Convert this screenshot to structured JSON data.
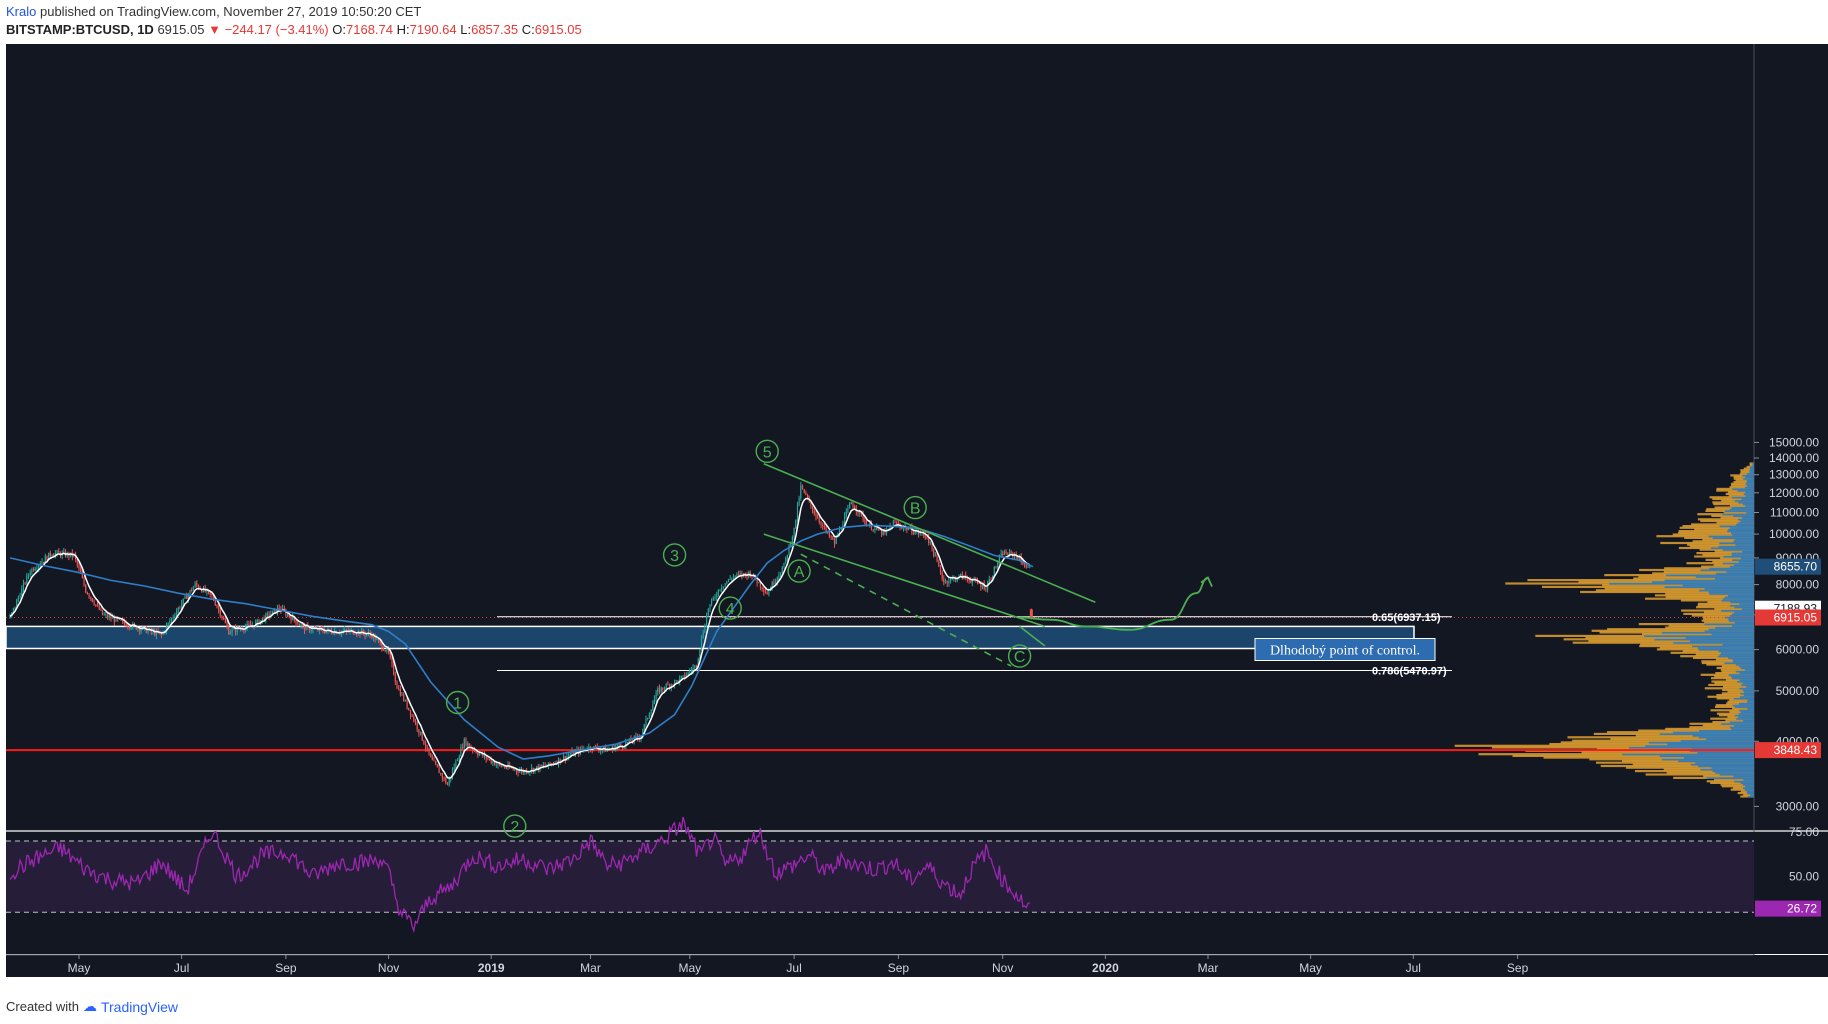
{
  "header": {
    "author": "Kralo",
    "published_text": "published on TradingView.com, November 27, 2019 10:50:20 CET",
    "symbol": "BITSTAMP:BTCUSD, 1D",
    "last": "6915.05",
    "change": "−244.17 (−3.41%)",
    "open_label": "O:",
    "open": "7168.74",
    "high_label": "H:",
    "high": "7190.64",
    "low_label": "L:",
    "low": "6857.35",
    "close_label": "C:",
    "close": "6915.05"
  },
  "footer": {
    "created_with": "Created with",
    "brand": "TradingView"
  },
  "colors": {
    "background": "#131722",
    "price_up": "#26a69a",
    "price_down": "#ef5350",
    "moving_avg": "#2f7ec7",
    "fast_ma": "#ffffff",
    "trend_lines": "#4caf50",
    "support_line": "#ff1a1a",
    "poc_zone": "#1f4e79",
    "rsi_line": "#9c27b0",
    "volume_profile_up": "#2a7abf",
    "volume_profile_down": "#e0a030"
  },
  "chart_data": {
    "type": "line",
    "title": "",
    "price_axis": {
      "ticks": [
        3000,
        4000,
        5000,
        6000,
        7000,
        8000,
        9000,
        10000,
        11000,
        12000,
        13000,
        14000,
        15000
      ],
      "tick_labels": [
        "3000.00",
        "4000.00",
        "5000.00",
        "6000.00",
        "7000.00",
        "8000.00",
        "9000.00",
        "10000.00",
        "11000.00",
        "12000.00",
        "13000.00",
        "14000.00",
        "15000.00"
      ],
      "ylim": [
        1900,
        15250
      ]
    },
    "time_axis": {
      "labels": [
        "May",
        "Jul",
        "Sep",
        "Nov",
        "2019",
        "Mar",
        "May",
        "Jul",
        "Sep",
        "Nov",
        "2020",
        "Mar",
        "May",
        "Jul",
        "Sep"
      ],
      "label_day_index": [
        41,
        102,
        164,
        225,
        286,
        345,
        404,
        466,
        528,
        590,
        651,
        712,
        773,
        834,
        896
      ]
    },
    "price_series": {
      "name": "BITSTAMP:BTCUSD",
      "x": [
        0,
        12,
        25,
        38,
        45,
        55,
        70,
        90,
        110,
        120,
        130,
        145,
        160,
        175,
        190,
        205,
        215,
        225,
        230,
        240,
        250,
        260,
        270,
        278,
        290,
        305,
        320,
        335,
        345,
        355,
        365,
        375,
        385,
        395,
        400,
        408,
        415,
        422,
        430,
        440,
        450,
        460,
        466,
        470,
        478,
        485,
        490,
        500,
        510,
        520,
        525,
        535,
        545,
        555,
        565,
        570,
        580,
        590,
        598,
        605
      ],
      "y": [
        6900,
        8500,
        9200,
        9100,
        7800,
        7000,
        6700,
        6400,
        8000,
        7600,
        6500,
        6700,
        7200,
        6600,
        6500,
        6500,
        6400,
        5900,
        5100,
        4400,
        3700,
        3300,
        4000,
        3800,
        3600,
        3500,
        3600,
        3800,
        3900,
        3850,
        3950,
        4100,
        5000,
        5200,
        5300,
        5600,
        7200,
        7900,
        8300,
        8400,
        7700,
        8700,
        10200,
        12300,
        11000,
        10100,
        9600,
        11500,
        10400,
        10000,
        10500,
        10200,
        9900,
        8100,
        8300,
        8200,
        7900,
        9200,
        9100,
        8600
      ]
    },
    "last_candle": {
      "x": 607,
      "open": 7168.74,
      "high": 7190.64,
      "low": 6857.35,
      "close": 6915.05
    },
    "moving_average": {
      "name": "",
      "x": [
        0,
        20,
        40,
        60,
        80,
        100,
        120,
        140,
        160,
        180,
        200,
        215,
        225,
        235,
        250,
        270,
        290,
        305,
        320,
        340,
        360,
        380,
        395,
        405,
        420,
        440,
        450,
        460,
        470,
        480,
        495,
        510,
        525,
        540,
        555,
        570,
        585,
        600,
        608
      ],
      "y": [
        9000,
        8700,
        8450,
        8150,
        7950,
        7700,
        7500,
        7350,
        7150,
        6950,
        6800,
        6700,
        6500,
        6150,
        5200,
        4400,
        3900,
        3700,
        3750,
        3850,
        3950,
        4150,
        4500,
        5100,
        6500,
        8000,
        8800,
        9300,
        9700,
        10000,
        10300,
        10400,
        10350,
        10250,
        9900,
        9500,
        9100,
        8900,
        8655.7
      ]
    },
    "fibonacci": [
      {
        "label": "0.65(6937.15)",
        "value": 6937.15
      },
      {
        "label": "0.786(5470.97)",
        "value": 5470.97
      }
    ],
    "support_line": {
      "value": 3848.43,
      "label": "3848.43"
    },
    "poc_zone": {
      "low": 6030,
      "high": 6650,
      "label": "Dlhodobý point of control."
    },
    "price_labels": [
      {
        "text": "8655.70",
        "value": 8655.7,
        "color": "#1f4e79"
      },
      {
        "text": "7188.93",
        "value": 7188.93,
        "color": "#ffffff"
      },
      {
        "text": "6915.05",
        "value": 6915.05,
        "color": "#e53935"
      },
      {
        "text": "3848.43",
        "value": 3848.43,
        "color": "#e53935"
      }
    ],
    "wave_labels": [
      {
        "text": "1",
        "x": 266,
        "y": 4750
      },
      {
        "text": "2",
        "x": 300,
        "y": 2750
      },
      {
        "text": "3",
        "x": 395,
        "y": 9120
      },
      {
        "text": "4",
        "x": 428,
        "y": 7210
      },
      {
        "text": "5",
        "x": 450,
        "y": 14420
      },
      {
        "text": "A",
        "x": 469,
        "y": 8490
      },
      {
        "text": "B",
        "x": 538,
        "y": 11240
      },
      {
        "text": "C",
        "x": 600,
        "y": 5830
      }
    ],
    "channel_lines": [
      {
        "x": [
          448,
          645
        ],
        "y": [
          13650,
          7400
        ],
        "dashed": false
      },
      {
        "x": [
          448,
          615
        ],
        "y": [
          10000,
          6650
        ],
        "dashed": false
      },
      {
        "x": [
          600,
          615
        ],
        "y": [
          6650,
          6100
        ],
        "dashed": false
      },
      {
        "x": [
          470,
          595
        ],
        "y": [
          9150,
          5580
        ],
        "dashed": true
      }
    ],
    "projection_curve": {
      "x": [
        600,
        618,
        640,
        665,
        690,
        705,
        712
      ],
      "y": [
        6915,
        6850,
        6650,
        6550,
        6850,
        7700,
        8250
      ]
    },
    "rsi": {
      "name": "RSI",
      "ylim": [
        0,
        100
      ],
      "upper_band": 70,
      "lower_band": 30,
      "tick_labels": [
        "75.00",
        "50.00"
      ],
      "ticks": [
        75,
        50
      ],
      "current_label": "26.72",
      "x": [
        0,
        15,
        30,
        45,
        60,
        75,
        90,
        105,
        120,
        135,
        150,
        165,
        180,
        195,
        210,
        220,
        225,
        232,
        240,
        250,
        262,
        275,
        290,
        305,
        320,
        335,
        345,
        355,
        365,
        372,
        380,
        390,
        400,
        410,
        418,
        425,
        435,
        445,
        455,
        465,
        475,
        485,
        495,
        505,
        515,
        525,
        535,
        545,
        555,
        565,
        570,
        580,
        590,
        600,
        605
      ],
      "y": [
        52,
        60,
        66,
        54,
        48,
        46,
        58,
        42,
        76,
        50,
        62,
        64,
        50,
        58,
        58,
        60,
        52,
        30,
        22,
        38,
        44,
        62,
        56,
        60,
        54,
        60,
        70,
        56,
        58,
        62,
        66,
        72,
        80,
        62,
        72,
        56,
        62,
        76,
        52,
        56,
        62,
        52,
        60,
        56,
        54,
        58,
        48,
        56,
        46,
        40,
        52,
        64,
        48,
        38,
        32
      ]
    }
  }
}
